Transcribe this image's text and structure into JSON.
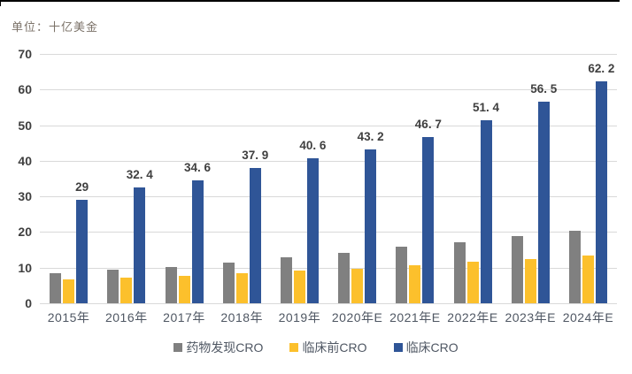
{
  "unit_label": "单位：十亿美金",
  "chart_data": {
    "type": "bar",
    "title": "",
    "xlabel": "",
    "ylabel": "单位：十亿美金",
    "categories": [
      "2015年",
      "2016年",
      "2017年",
      "2018年",
      "2019年",
      "2020年E",
      "2021年E",
      "2022年E",
      "2023年E",
      "2024年E"
    ],
    "series": [
      {
        "name": "药物发现CRO",
        "color": "#808080",
        "values": [
          8.5,
          9.4,
          10.3,
          11.4,
          12.8,
          14.2,
          15.9,
          17.2,
          18.9,
          20.4
        ]
      },
      {
        "name": "临床前CRO",
        "color": "#FCC02C",
        "values": [
          6.8,
          7.1,
          7.8,
          8.5,
          9.1,
          9.8,
          10.8,
          11.7,
          12.5,
          13.4
        ]
      },
      {
        "name": "临床CRO",
        "color": "#2F5597",
        "values": [
          29,
          32.4,
          34.6,
          37.9,
          40.6,
          43.2,
          46.7,
          51.4,
          56.5,
          62.2
        ],
        "data_labels": [
          "29",
          "32. 4",
          "34. 6",
          "37. 9",
          "40. 6",
          "43. 2",
          "46. 7",
          "51. 4",
          "56. 5",
          "62. 2"
        ]
      }
    ],
    "ylim": [
      0,
      70
    ],
    "y_ticks": [
      70,
      60,
      50,
      40,
      30,
      20,
      10,
      0
    ],
    "grid": true,
    "legend_position": "bottom",
    "colors": {
      "gridline": "#d9d9d9",
      "axis_text": "#4f5763",
      "data_label_text": "#3f3f3f",
      "unit_text": "#7b7268",
      "top_border": "#000000",
      "background": "#ffffff"
    }
  }
}
